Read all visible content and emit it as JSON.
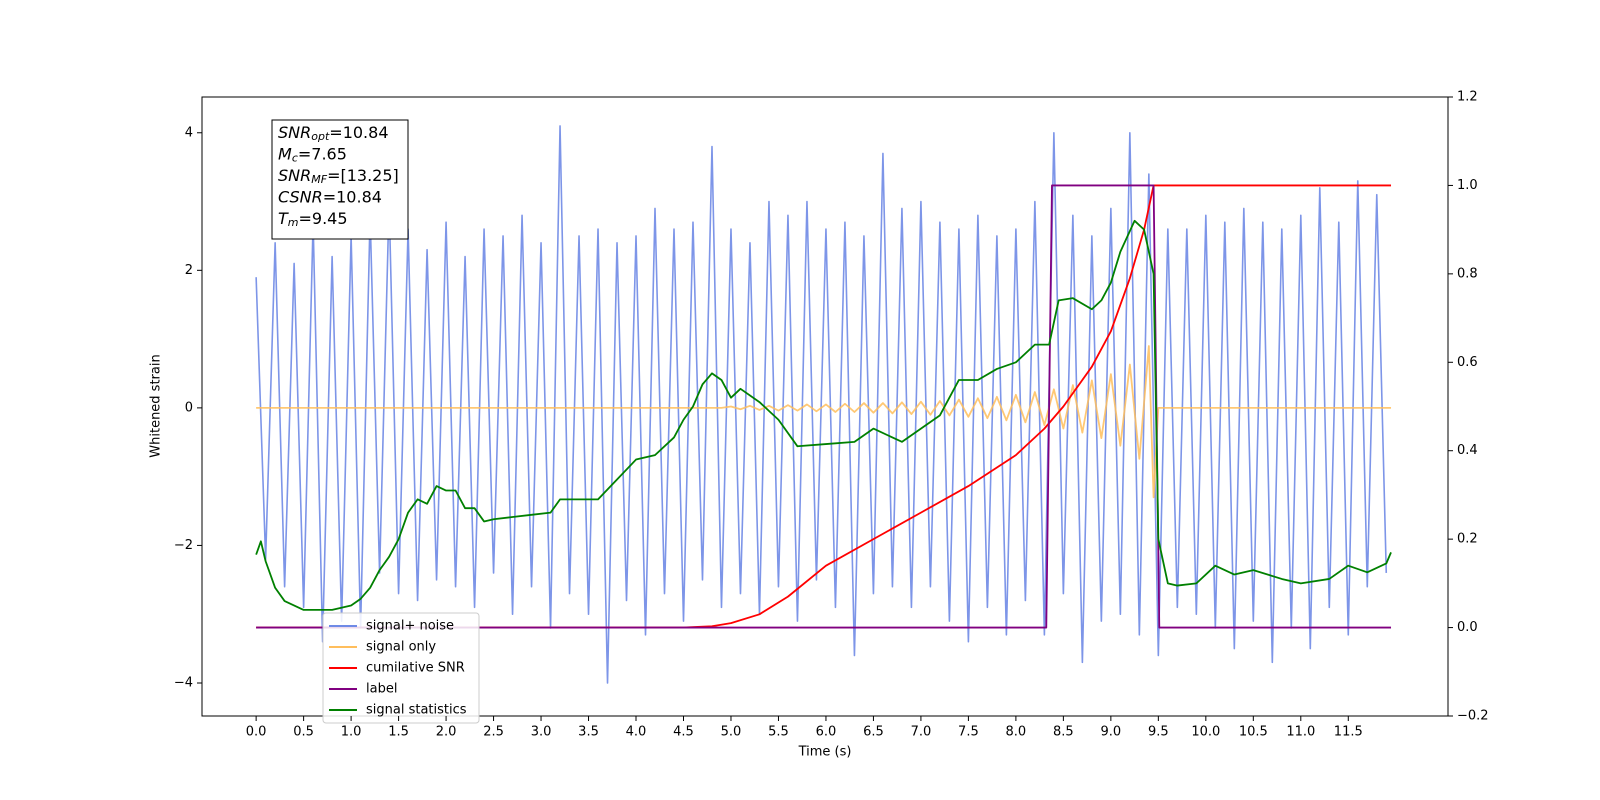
{
  "chart_data": {
    "type": "line",
    "xlabel": "Time (s)",
    "ylabel": "Whitened strain",
    "xlim": [
      -0.57,
      12.55
    ],
    "ylim": [
      -4.48,
      4.52
    ],
    "y2lim": [
      -0.2,
      1.2
    ],
    "xticks": [
      {
        "value": 0,
        "label": "0.0"
      },
      0.5,
      {
        "value": 1,
        "label": "1.0"
      },
      1.5,
      {
        "value": 2,
        "label": "2.0"
      },
      2.5,
      {
        "value": 3,
        "label": "3.0"
      },
      3.5,
      {
        "value": 4,
        "label": "4.0"
      },
      4.5,
      {
        "value": 5,
        "label": "5.0"
      },
      5.5,
      {
        "value": 6,
        "label": "6.0"
      },
      6.5,
      {
        "value": 7,
        "label": "7.0"
      },
      7.5,
      {
        "value": 8,
        "label": "8.0"
      },
      8.5,
      {
        "value": 9,
        "label": "9.0"
      },
      9.5,
      {
        "value": 10,
        "label": "10.0"
      },
      10.5,
      {
        "value": 11,
        "label": "11.0"
      },
      11.5
    ],
    "yticks": [
      {
        "value": -4,
        "label": "−4"
      },
      {
        "value": -2,
        "label": "−2"
      },
      0,
      2,
      4
    ],
    "y2ticks": [
      {
        "value": -0.2,
        "label": "−0.2"
      },
      {
        "value": 0,
        "label": "0.0"
      },
      0.2,
      0.4,
      0.6,
      0.8,
      {
        "value": 1,
        "label": "1.0"
      },
      1.2
    ],
    "legend": "lower left",
    "annotation": [
      {
        "symbol": "SNR",
        "sub": "opt",
        "value": "=10.84"
      },
      {
        "symbol": "M",
        "sub": "c",
        "value": "=7.65"
      },
      {
        "symbol": "SNR",
        "sub": "MF",
        "value": "=[13.25]"
      },
      {
        "symbol": "CSNR",
        "value": "=10.84"
      },
      {
        "symbol": "T",
        "sub": "m",
        "value": "=9.45"
      }
    ],
    "series": [
      {
        "name": "signal+ noise",
        "color": "#6f8ae6",
        "x": [
          0,
          0.1,
          0.2,
          0.3,
          0.4,
          0.5,
          0.6,
          0.7,
          0.8,
          0.9,
          1,
          1.1,
          1.2,
          1.3,
          1.4,
          1.5,
          1.6,
          1.7,
          1.8,
          1.9,
          2,
          2.1,
          2.2,
          2.3,
          2.4,
          2.5,
          2.6,
          2.7,
          2.8,
          2.9,
          3,
          3.1,
          3.2,
          3.3,
          3.4,
          3.5,
          3.6,
          3.7,
          3.8,
          3.9,
          4,
          4.1,
          4.2,
          4.3,
          4.4,
          4.5,
          4.6,
          4.7,
          4.8,
          4.9,
          5,
          5.1,
          5.2,
          5.3,
          5.4,
          5.5,
          5.6,
          5.7,
          5.8,
          5.9,
          6,
          6.1,
          6.2,
          6.3,
          6.4,
          6.5,
          6.6,
          6.7,
          6.8,
          6.9,
          7,
          7.1,
          7.2,
          7.3,
          7.4,
          7.5,
          7.6,
          7.7,
          7.8,
          7.9,
          8,
          8.1,
          8.2,
          8.3,
          8.4,
          8.5,
          8.6,
          8.7,
          8.8,
          8.9,
          9,
          9.1,
          9.2,
          9.3,
          9.4,
          9.5,
          9.6,
          9.7,
          9.8,
          9.9,
          10,
          10.1,
          10.2,
          10.3,
          10.4,
          10.5,
          10.6,
          10.7,
          10.8,
          10.9,
          11,
          11.1,
          11.2,
          11.3,
          11.4,
          11.5,
          11.6,
          11.7,
          11.8,
          11.9
        ],
        "values": [
          1.9,
          -2.2,
          2.4,
          -2.6,
          2.1,
          -2.9,
          2.7,
          -3.4,
          2.2,
          -3.1,
          2.5,
          -3.2,
          2.8,
          -2.4,
          3.0,
          -2.7,
          2.6,
          -2.8,
          2.3,
          -2.5,
          2.7,
          -2.6,
          2.2,
          -2.9,
          2.6,
          -2.4,
          2.5,
          -3.0,
          2.8,
          -2.6,
          2.4,
          -3.2,
          4.1,
          -2.7,
          2.5,
          -3.0,
          2.6,
          -4.0,
          2.4,
          -2.8,
          2.5,
          -3.3,
          2.9,
          -2.7,
          2.6,
          -3.1,
          2.7,
          -2.5,
          3.8,
          -2.9,
          2.6,
          -2.7,
          2.4,
          -3.0,
          3.0,
          -2.6,
          2.8,
          -3.1,
          3.0,
          -2.5,
          2.6,
          -2.9,
          2.7,
          -3.6,
          2.5,
          -2.7,
          3.7,
          -2.6,
          2.9,
          -2.9,
          3.0,
          -2.6,
          2.7,
          -3.1,
          2.6,
          -3.4,
          2.8,
          -2.9,
          2.5,
          -3.3,
          2.6,
          -2.8,
          3.0,
          -3.3,
          4.0,
          -2.7,
          2.8,
          -3.7,
          2.5,
          -3.1,
          2.9,
          -3.0,
          4.0,
          -3.3,
          3.4,
          -3.6,
          2.6,
          -2.9,
          2.6,
          -3.0,
          2.8,
          -3.2,
          2.7,
          -3.5,
          2.9,
          -3.1,
          2.7,
          -3.7,
          2.6,
          -3.2,
          2.8,
          -3.5,
          3.2,
          -2.9,
          2.7,
          -3.3,
          3.3,
          -2.6,
          3.1,
          -2.4
        ]
      },
      {
        "name": "signal only",
        "color": "#ffbe5c",
        "x": [
          0,
          1,
          2,
          3,
          4,
          4.9,
          5,
          5.1,
          5.2,
          5.3,
          5.4,
          5.5,
          5.6,
          5.7,
          5.8,
          5.9,
          6,
          6.1,
          6.2,
          6.3,
          6.4,
          6.5,
          6.6,
          6.7,
          6.8,
          6.9,
          7,
          7.1,
          7.2,
          7.3,
          7.4,
          7.5,
          7.6,
          7.7,
          7.8,
          7.9,
          8,
          8.1,
          8.2,
          8.3,
          8.4,
          8.5,
          8.6,
          8.7,
          8.8,
          8.9,
          9,
          9.1,
          9.2,
          9.3,
          9.4,
          9.45,
          9.5,
          10,
          11,
          11.95
        ],
        "values": [
          0,
          0,
          0,
          0,
          0,
          0,
          0.02,
          -0.02,
          0.03,
          -0.03,
          0.03,
          -0.04,
          0.04,
          -0.04,
          0.05,
          -0.05,
          0.05,
          -0.06,
          0.06,
          -0.06,
          0.07,
          -0.07,
          0.07,
          -0.08,
          0.08,
          -0.09,
          0.09,
          -0.1,
          0.1,
          -0.11,
          0.12,
          -0.13,
          0.14,
          -0.15,
          0.16,
          -0.18,
          0.19,
          -0.21,
          0.23,
          -0.25,
          0.27,
          -0.3,
          0.33,
          -0.36,
          0.4,
          -0.44,
          0.49,
          -0.55,
          0.63,
          -0.74,
          0.9,
          -1.3,
          0,
          0,
          0,
          0
        ]
      },
      {
        "name": "cumilative SNR",
        "color": "#ff0000",
        "axis": "y2",
        "x": [
          0,
          4.5,
          4.8,
          5,
          5.3,
          5.6,
          6,
          6.5,
          7,
          7.5,
          8,
          8.3,
          8.5,
          8.8,
          9,
          9.2,
          9.35,
          9.45,
          10,
          11,
          11.95
        ],
        "values": [
          0,
          0,
          0.003,
          0.01,
          0.03,
          0.07,
          0.14,
          0.2,
          0.26,
          0.32,
          0.39,
          0.45,
          0.5,
          0.59,
          0.67,
          0.79,
          0.9,
          1.0,
          1.0,
          1.0,
          1.0
        ]
      },
      {
        "name": "label",
        "color": "#800080",
        "axis": "y2",
        "x": [
          0,
          8.32,
          8.38,
          9.45,
          9.51,
          11.95
        ],
        "values": [
          0,
          0,
          1,
          1,
          0,
          0
        ]
      },
      {
        "name": "signal statistics",
        "color": "#008000",
        "axis": "y2",
        "x": [
          0,
          0.05,
          0.1,
          0.2,
          0.3,
          0.5,
          0.8,
          1,
          1.1,
          1.2,
          1.3,
          1.4,
          1.5,
          1.6,
          1.7,
          1.8,
          1.9,
          2,
          2.1,
          2.2,
          2.3,
          2.4,
          2.5,
          2.7,
          2.9,
          3.1,
          3.2,
          3.4,
          3.6,
          3.8,
          4,
          4.2,
          4.4,
          4.5,
          4.6,
          4.7,
          4.8,
          4.9,
          5,
          5.1,
          5.3,
          5.5,
          5.7,
          6,
          6.3,
          6.5,
          6.8,
          7,
          7.2,
          7.4,
          7.6,
          7.8,
          8,
          8.2,
          8.35,
          8.45,
          8.6,
          8.8,
          8.9,
          9,
          9.1,
          9.25,
          9.35,
          9.45,
          9.5,
          9.6,
          9.7,
          9.9,
          10.1,
          10.3,
          10.5,
          10.8,
          11,
          11.3,
          11.5,
          11.7,
          11.9,
          11.95
        ],
        "values": [
          0.165,
          0.195,
          0.15,
          0.09,
          0.06,
          0.04,
          0.04,
          0.05,
          0.065,
          0.09,
          0.13,
          0.16,
          0.2,
          0.26,
          0.29,
          0.28,
          0.32,
          0.31,
          0.31,
          0.27,
          0.27,
          0.24,
          0.245,
          0.25,
          0.255,
          0.26,
          0.29,
          0.29,
          0.29,
          0.335,
          0.38,
          0.39,
          0.43,
          0.47,
          0.5,
          0.55,
          0.575,
          0.56,
          0.52,
          0.54,
          0.51,
          0.47,
          0.41,
          0.415,
          0.42,
          0.45,
          0.42,
          0.45,
          0.48,
          0.56,
          0.56,
          0.585,
          0.6,
          0.64,
          0.64,
          0.74,
          0.745,
          0.72,
          0.74,
          0.78,
          0.85,
          0.92,
          0.9,
          0.8,
          0.2,
          0.1,
          0.095,
          0.1,
          0.14,
          0.12,
          0.13,
          0.11,
          0.1,
          0.11,
          0.14,
          0.125,
          0.145,
          0.17
        ]
      }
    ]
  }
}
